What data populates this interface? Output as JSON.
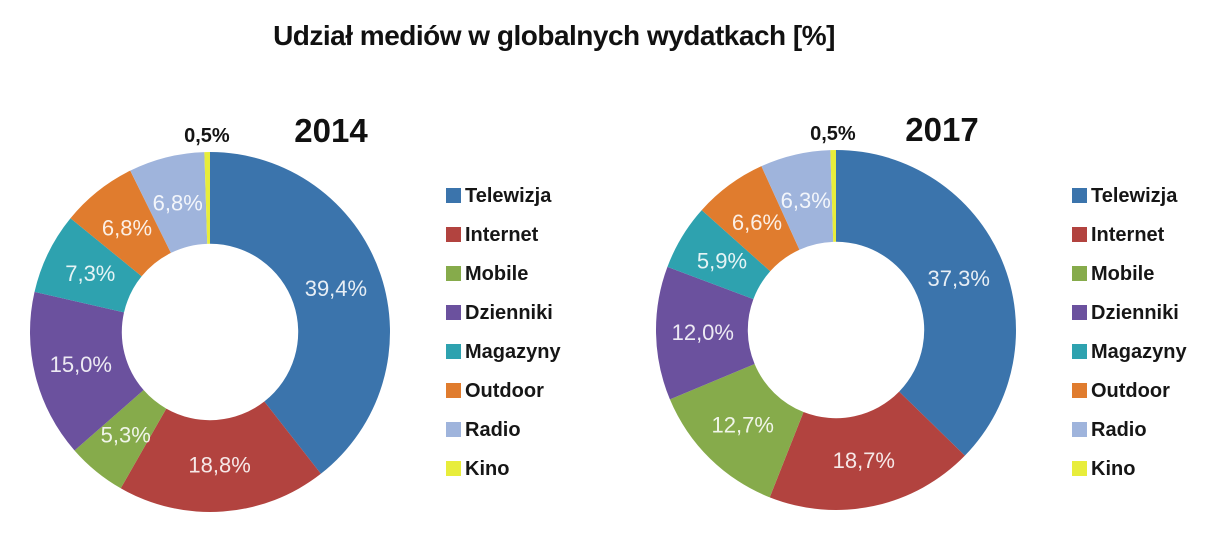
{
  "title": "Udział mediów w globalnych wydatkach [%]",
  "palette": {
    "Telewizja": "#3B74AC",
    "Internet": "#B2433F",
    "Mobile": "#86AB4B",
    "Dzienniki": "#6B519E",
    "Magazyny": "#2EA2AF",
    "Outdoor": "#E07C2E",
    "Radio": "#9FB4DC",
    "Kino": "#E8ED3B"
  },
  "label_colors": {
    "inside": "#FFFFFF",
    "outside": "#141414"
  },
  "chart_data": [
    {
      "type": "pie",
      "donut": true,
      "hole_ratio": 0.49,
      "start_angle": "top",
      "direction": "clockwise",
      "legend_position": "right",
      "title": "2014",
      "categories": [
        "Telewizja",
        "Internet",
        "Mobile",
        "Dzienniki",
        "Magazyny",
        "Outdoor",
        "Radio",
        "Kino"
      ],
      "values": [
        39.4,
        18.8,
        5.3,
        15.0,
        7.3,
        6.8,
        6.8,
        0.5
      ],
      "display_labels": [
        "39,4%",
        "18,8%",
        "5,3%",
        "15,0%",
        "7,3%",
        "6,8%",
        "6,8%",
        "0,5%"
      ],
      "colors": [
        "#3B74AC",
        "#B2433F",
        "#86AB4B",
        "#6B519E",
        "#2EA2AF",
        "#E07C2E",
        "#9FB4DC",
        "#E8ED3B"
      ]
    },
    {
      "type": "pie",
      "donut": true,
      "hole_ratio": 0.49,
      "start_angle": "top",
      "direction": "clockwise",
      "legend_position": "right",
      "title": "2017",
      "categories": [
        "Telewizja",
        "Internet",
        "Mobile",
        "Dzienniki",
        "Magazyny",
        "Outdoor",
        "Radio",
        "Kino"
      ],
      "values": [
        37.3,
        18.7,
        12.7,
        12.0,
        5.9,
        6.6,
        6.3,
        0.5
      ],
      "display_labels": [
        "37,3%",
        "18,7%",
        "12,7%",
        "12,0%",
        "5,9%",
        "6,6%",
        "6,3%",
        "0,5%"
      ],
      "colors": [
        "#3B74AC",
        "#B2433F",
        "#86AB4B",
        "#6B519E",
        "#2EA2AF",
        "#E07C2E",
        "#9FB4DC",
        "#E8ED3B"
      ]
    }
  ]
}
